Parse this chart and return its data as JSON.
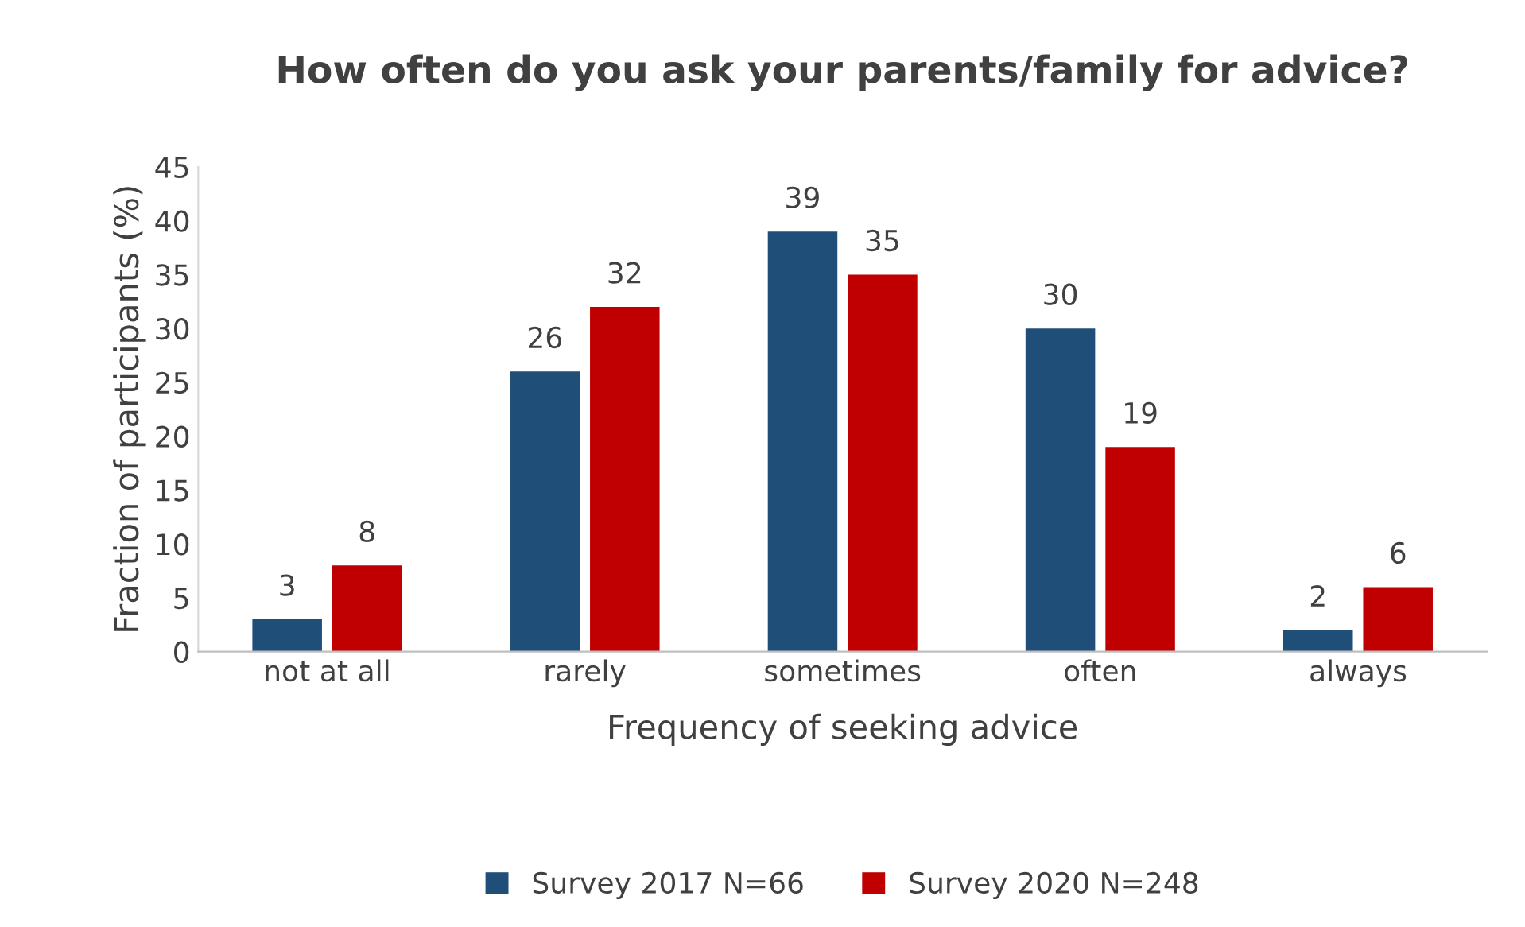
{
  "chart_data": {
    "type": "bar",
    "title": "How often do you ask your parents/family for advice?",
    "xlabel": "Frequency of seeking advice",
    "ylabel": "Fraction of participants (%)",
    "categories": [
      "not at all",
      "rarely",
      "sometimes",
      "often",
      "always"
    ],
    "series": [
      {
        "name": "Survey 2017 N=66",
        "color": "#1f4e79",
        "values": [
          3,
          26,
          39,
          30,
          2
        ]
      },
      {
        "name": "Survey 2020 N=248",
        "color": "#c00000",
        "values": [
          8,
          32,
          35,
          19,
          6
        ]
      }
    ],
    "ylim": [
      0,
      45
    ],
    "yticks": [
      0,
      5,
      10,
      15,
      20,
      25,
      30,
      35,
      40,
      45
    ],
    "grid": false,
    "legend": "bottom",
    "data_labels": true
  }
}
